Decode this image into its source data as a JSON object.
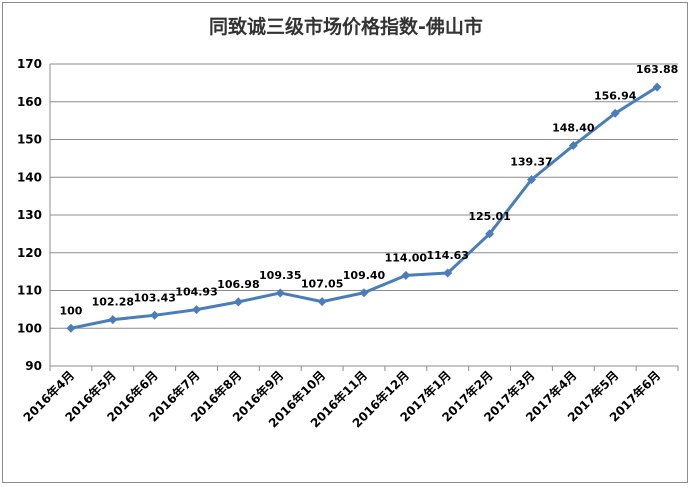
{
  "chart_data": {
    "type": "line",
    "title": "同致诚三级市场价格指数-佛山市",
    "xlabel": "",
    "ylabel": "",
    "ylim": [
      90,
      170
    ],
    "yticks": [
      90,
      100,
      110,
      120,
      130,
      140,
      150,
      160,
      170
    ],
    "grid": true,
    "legend": "none",
    "categories": [
      "2016年4月",
      "2016年5月",
      "2016年6月",
      "2016年7月",
      "2016年8月",
      "2016年9月",
      "2016年10月",
      "2016年11月",
      "2016年12月",
      "2017年1月",
      "2017年2月",
      "2017年3月",
      "2017年4月",
      "2017年5月",
      "2017年6月"
    ],
    "series": [
      {
        "values": [
          100,
          102.28,
          103.43,
          104.93,
          106.98,
          109.35,
          107.05,
          109.4,
          114.0,
          114.63,
          125.01,
          139.37,
          148.4,
          156.94,
          163.88
        ],
        "labels": [
          "100",
          "102.28",
          "103.43",
          "104.93",
          "106.98",
          "109.35",
          "107.05",
          "109.40",
          "114.00",
          "114.63",
          "125.01",
          "139.37",
          "148.40",
          "156.94",
          "163.88"
        ],
        "color": "#4a7ebb"
      }
    ]
  }
}
